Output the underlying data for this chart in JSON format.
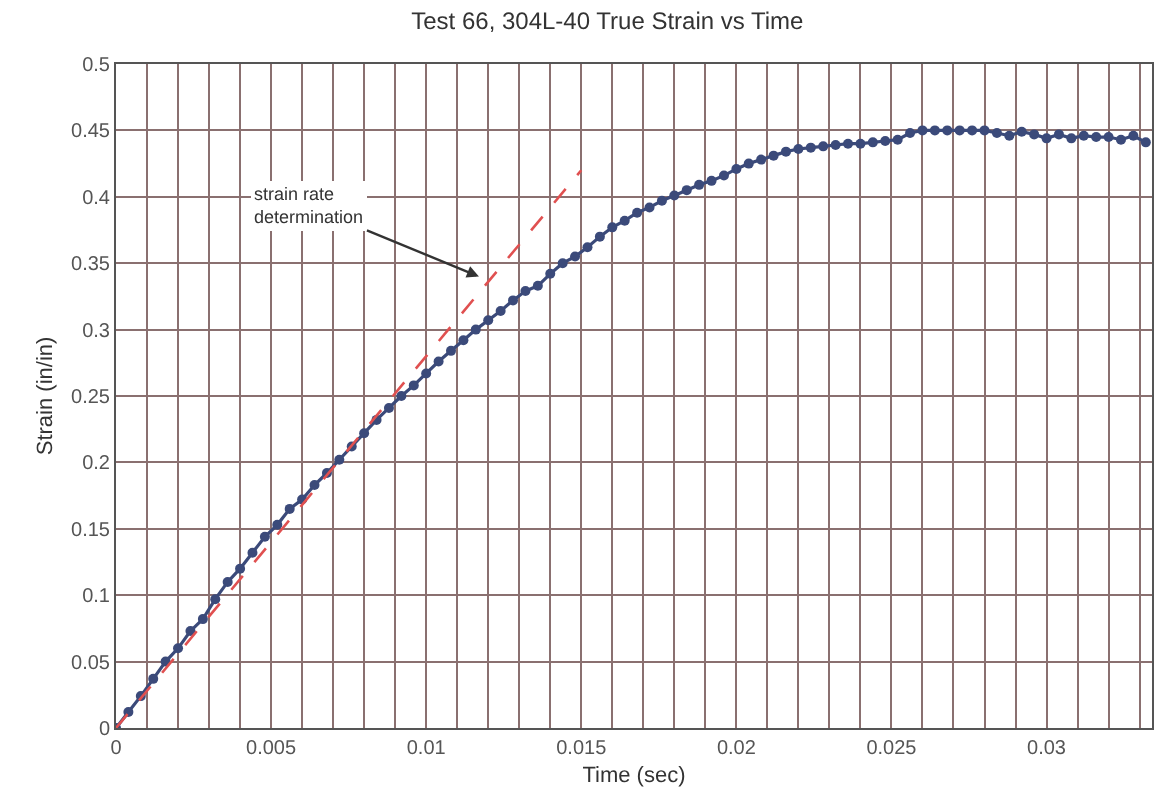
{
  "chart_data": {
    "type": "line",
    "title": "Test 66, 304L-40 True Strain vs Time",
    "xlabel": "Time (sec)",
    "ylabel": "Strain (in/in)",
    "xlim": [
      0,
      0.0334
    ],
    "xticks": [
      0,
      0.005,
      0.01,
      0.015,
      0.02,
      0.025,
      0.03
    ],
    "ylim": [
      0,
      0.5
    ],
    "yticks": [
      0,
      0.05,
      0.1,
      0.15,
      0.2,
      0.25,
      0.3,
      0.35,
      0.4,
      0.45,
      0.5
    ],
    "grid": true,
    "annotations": [
      {
        "text": "strain rate\ndetermination",
        "x": 0.0117,
        "y": 0.34
      }
    ],
    "series": [
      {
        "marker": "circle",
        "line_style": "solid",
        "color": "#3b4a7a",
        "x": [
          0,
          0.0004,
          0.0008,
          0.0012,
          0.0016,
          0.002,
          0.0024,
          0.0028,
          0.0032,
          0.0036,
          0.004,
          0.0044,
          0.0048,
          0.0052,
          0.0056,
          0.006,
          0.0064,
          0.0068,
          0.0072,
          0.0076,
          0.008,
          0.0084,
          0.0088,
          0.0092,
          0.0096,
          0.01,
          0.0104,
          0.0108,
          0.0112,
          0.0116,
          0.012,
          0.0124,
          0.0128,
          0.0132,
          0.0136,
          0.014,
          0.0144,
          0.0148,
          0.0152,
          0.0156,
          0.016,
          0.0164,
          0.0168,
          0.0172,
          0.0176,
          0.018,
          0.0184,
          0.0188,
          0.0192,
          0.0196,
          0.02,
          0.0204,
          0.0208,
          0.0212,
          0.0216,
          0.022,
          0.0224,
          0.0228,
          0.0232,
          0.0236,
          0.024,
          0.0244,
          0.0248,
          0.0252,
          0.0256,
          0.026,
          0.0264,
          0.0268,
          0.0272,
          0.0276,
          0.028,
          0.0284,
          0.0288,
          0.0292,
          0.0296,
          0.03,
          0.0304,
          0.0308,
          0.0312,
          0.0316,
          0.032,
          0.0324,
          0.0328,
          0.0332
        ],
        "values": [
          0,
          0.012,
          0.024,
          0.037,
          0.05,
          0.06,
          0.073,
          0.082,
          0.097,
          0.11,
          0.12,
          0.132,
          0.144,
          0.153,
          0.165,
          0.172,
          0.183,
          0.192,
          0.202,
          0.212,
          0.222,
          0.232,
          0.241,
          0.25,
          0.258,
          0.267,
          0.276,
          0.284,
          0.292,
          0.3,
          0.307,
          0.314,
          0.322,
          0.329,
          0.333,
          0.342,
          0.35,
          0.355,
          0.362,
          0.37,
          0.377,
          0.382,
          0.388,
          0.392,
          0.397,
          0.401,
          0.405,
          0.409,
          0.412,
          0.416,
          0.421,
          0.425,
          0.428,
          0.431,
          0.434,
          0.436,
          0.437,
          0.438,
          0.439,
          0.44,
          0.44,
          0.441,
          0.442,
          0.443,
          0.448,
          0.45,
          0.45,
          0.45,
          0.45,
          0.45,
          0.45,
          0.448,
          0.446,
          0.449,
          0.447,
          0.444,
          0.447,
          0.444,
          0.446,
          0.445,
          0.445,
          0.443,
          0.446,
          0.441
        ]
      },
      {
        "marker": "none",
        "line_style": "dashed",
        "color": "#e05050",
        "x": [
          0,
          0.015
        ],
        "values": [
          0,
          0.42
        ]
      }
    ]
  }
}
